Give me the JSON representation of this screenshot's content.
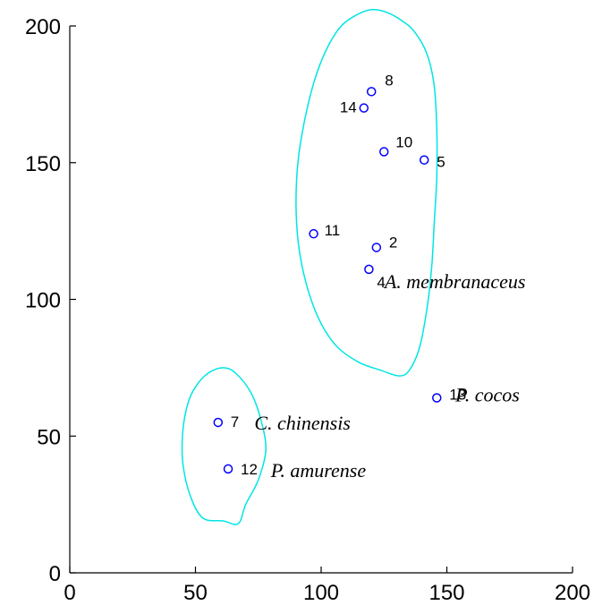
{
  "chart_data": {
    "type": "scatter",
    "title": "",
    "xlabel": "",
    "ylabel": "",
    "xlim": [
      0,
      200
    ],
    "ylim": [
      0,
      200
    ],
    "x_ticks": [
      "0",
      "50",
      "100",
      "150",
      "200"
    ],
    "y_ticks": [
      "0",
      "50",
      "100",
      "150",
      "200"
    ],
    "grid": false,
    "colors": {
      "points": "#0000ff",
      "outline": "#00e5e5",
      "axes": "#000000"
    },
    "points": [
      {
        "label": "8",
        "x": 120,
        "y": 176
      },
      {
        "label": "14",
        "x": 117,
        "y": 170
      },
      {
        "label": "10",
        "x": 125,
        "y": 154
      },
      {
        "label": "5",
        "x": 141,
        "y": 151
      },
      {
        "label": "11",
        "x": 97,
        "y": 124
      },
      {
        "label": "2",
        "x": 122,
        "y": 119
      },
      {
        "label": "4",
        "x": 119,
        "y": 111
      },
      {
        "label": "13",
        "x": 146,
        "y": 64
      },
      {
        "label": "7",
        "x": 59,
        "y": 55
      },
      {
        "label": "12",
        "x": 63,
        "y": 38
      }
    ],
    "annotations": [
      {
        "text": "A. membranaceus",
        "x": 122,
        "y": 111
      },
      {
        "text": "P. cocos",
        "x": 152,
        "y": 65
      },
      {
        "text": "C. chinensis",
        "x": 72,
        "y": 55
      },
      {
        "text": "P. amurense",
        "x": 80,
        "y": 38
      }
    ],
    "cluster_outlines": [
      {
        "points": [
          [
            108,
            200
          ],
          [
            103,
            193
          ],
          [
            98,
            182
          ],
          [
            94,
            168
          ],
          [
            91,
            152
          ],
          [
            90,
            136
          ],
          [
            91,
            120
          ],
          [
            94,
            106
          ],
          [
            99,
            93
          ],
          [
            106,
            83
          ],
          [
            115,
            77
          ],
          [
            124,
            74
          ],
          [
            131,
            72
          ],
          [
            135,
            74
          ],
          [
            139,
            82
          ],
          [
            142,
            96
          ],
          [
            144,
            112
          ],
          [
            145,
            128
          ],
          [
            146,
            145
          ],
          [
            146,
            162
          ],
          [
            145,
            178
          ],
          [
            142,
            190
          ],
          [
            137,
            198
          ],
          [
            132,
            202
          ],
          [
            126,
            205
          ],
          [
            120,
            206
          ],
          [
            114,
            204
          ]
        ]
      },
      {
        "points": [
          [
            50,
            68
          ],
          [
            55,
            73
          ],
          [
            61,
            75
          ],
          [
            66,
            73
          ],
          [
            72,
            66
          ],
          [
            76,
            56
          ],
          [
            78,
            45
          ],
          [
            75,
            34
          ],
          [
            70,
            25
          ],
          [
            67,
            18
          ],
          [
            61,
            19
          ],
          [
            53,
            20
          ],
          [
            48,
            28
          ],
          [
            45,
            40
          ],
          [
            45,
            52
          ],
          [
            47,
            62
          ]
        ]
      }
    ]
  }
}
